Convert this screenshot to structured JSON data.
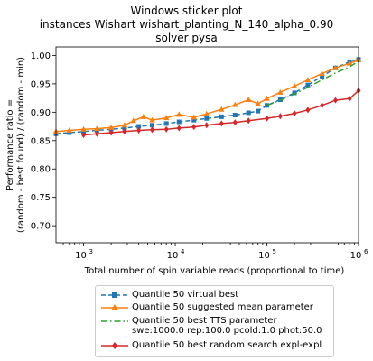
{
  "figure": {
    "title_lines": [
      "Windows sticker plot",
      "instances Wishart wishart_planting_N_140_alpha_0.90",
      "solver pysa"
    ]
  },
  "chart_data": {
    "type": "line",
    "xscale": "log",
    "xlim": [
      500,
      1000000
    ],
    "ylim": [
      0.67,
      1.015
    ],
    "xlabel": "Total number of spin variable reads (proportional to time)",
    "ylabel_lines": [
      "Performance ratio =",
      "(random - best found) / (random - min)"
    ],
    "x_ticks": [
      {
        "value": 1000,
        "base": "10",
        "exp": "3"
      },
      {
        "value": 10000,
        "base": "10",
        "exp": "4"
      },
      {
        "value": 100000,
        "base": "10",
        "exp": "5"
      },
      {
        "value": 1000000,
        "base": "10",
        "exp": "6"
      }
    ],
    "y_ticks": [
      "0.70",
      "0.75",
      "0.80",
      "0.85",
      "0.90",
      "0.95",
      "1.00"
    ],
    "legend_position": "below",
    "series": [
      {
        "name": "Quantile 50 virtual best",
        "color": "#1f77b4",
        "dash": "5,3",
        "marker": "square",
        "points": [
          [
            500,
            0.862
          ],
          [
            700,
            0.864
          ],
          [
            1000,
            0.866
          ],
          [
            1400,
            0.868
          ],
          [
            2000,
            0.87
          ],
          [
            2800,
            0.872
          ],
          [
            4000,
            0.875
          ],
          [
            5600,
            0.877
          ],
          [
            8000,
            0.88
          ],
          [
            11000,
            0.883
          ],
          [
            16000,
            0.886
          ],
          [
            22000,
            0.889
          ],
          [
            32000,
            0.892
          ],
          [
            45000,
            0.895
          ],
          [
            63000,
            0.899
          ],
          [
            80000,
            0.902
          ],
          [
            100000,
            0.912
          ],
          [
            140000,
            0.922
          ],
          [
            200000,
            0.934
          ],
          [
            280000,
            0.948
          ],
          [
            400000,
            0.963
          ],
          [
            560000,
            0.978
          ],
          [
            800000,
            0.989
          ],
          [
            1000000,
            0.993
          ]
        ]
      },
      {
        "name": "Quantile 50 suggested mean parameter",
        "color": "#ff7f0e",
        "dash": "",
        "marker": "triangle",
        "points": [
          [
            500,
            0.866
          ],
          [
            700,
            0.868
          ],
          [
            1000,
            0.87
          ],
          [
            1400,
            0.871
          ],
          [
            2000,
            0.873
          ],
          [
            2800,
            0.877
          ],
          [
            3500,
            0.885
          ],
          [
            4500,
            0.892
          ],
          [
            5600,
            0.886
          ],
          [
            8000,
            0.89
          ],
          [
            11000,
            0.896
          ],
          [
            16000,
            0.891
          ],
          [
            22000,
            0.897
          ],
          [
            32000,
            0.905
          ],
          [
            45000,
            0.913
          ],
          [
            63000,
            0.922
          ],
          [
            80000,
            0.915
          ],
          [
            100000,
            0.924
          ],
          [
            140000,
            0.935
          ],
          [
            200000,
            0.946
          ],
          [
            280000,
            0.957
          ],
          [
            400000,
            0.968
          ],
          [
            560000,
            0.978
          ],
          [
            800000,
            0.986
          ],
          [
            1000000,
            0.992
          ]
        ]
      },
      {
        "name_lines": [
          "Quantile 50 best TTS parameter",
          "swe:1000.0 rep:100.0 pcold:1.0 phot:50.0"
        ],
        "color": "#2ca02c",
        "dash": "7,3,1.5,3",
        "marker": "none",
        "points": [
          [
            100000,
            0.912
          ],
          [
            140000,
            0.921
          ],
          [
            200000,
            0.932
          ],
          [
            280000,
            0.944
          ],
          [
            400000,
            0.957
          ],
          [
            560000,
            0.969
          ],
          [
            800000,
            0.98
          ],
          [
            1000000,
            0.99
          ]
        ]
      },
      {
        "name": "Quantile 50  best random search expl-expl",
        "color": "#d62728",
        "dash": "",
        "marker": "diamond",
        "points": [
          [
            1000,
            0.86
          ],
          [
            1400,
            0.862
          ],
          [
            2000,
            0.864
          ],
          [
            2800,
            0.866
          ],
          [
            4000,
            0.868
          ],
          [
            5600,
            0.869
          ],
          [
            8000,
            0.87
          ],
          [
            11000,
            0.872
          ],
          [
            16000,
            0.874
          ],
          [
            22000,
            0.877
          ],
          [
            32000,
            0.88
          ],
          [
            45000,
            0.882
          ],
          [
            63000,
            0.885
          ],
          [
            100000,
            0.889
          ],
          [
            140000,
            0.893
          ],
          [
            200000,
            0.898
          ],
          [
            280000,
            0.904
          ],
          [
            400000,
            0.912
          ],
          [
            560000,
            0.921
          ],
          [
            800000,
            0.924
          ],
          [
            1000000,
            0.938
          ]
        ]
      }
    ]
  }
}
